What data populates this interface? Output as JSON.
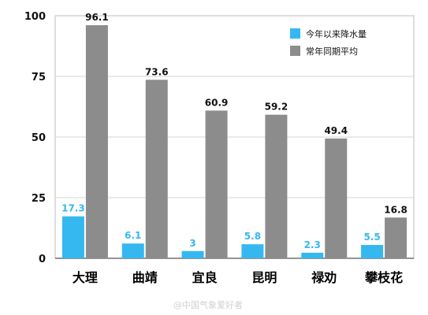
{
  "chart_data": {
    "type": "bar",
    "categories": [
      "大理",
      "曲靖",
      "宜良",
      "昆明",
      "禄劝",
      "攀枝花"
    ],
    "series": [
      {
        "name": "今年以来降水量",
        "values": [
          17.3,
          6.1,
          3,
          5.8,
          2.3,
          5.5
        ],
        "color": "#35b8f0"
      },
      {
        "name": "常年同期平均",
        "values": [
          96.1,
          73.6,
          60.9,
          59.2,
          49.4,
          16.8
        ],
        "color": "#8c8c8c"
      }
    ],
    "value_labels": [
      [
        "17.3",
        "6.1",
        "3",
        "5.8",
        "2.3",
        "5.5"
      ],
      [
        "96.1",
        "73.6",
        "60.9",
        "59.2",
        "49.4",
        "16.8"
      ]
    ],
    "yticks": [
      0,
      25,
      50,
      75,
      100
    ],
    "ylim": [
      0,
      100
    ],
    "grid": true,
    "legend_position": "top-right",
    "label_colors": [
      "#35b8f0",
      "#111111"
    ]
  },
  "watermark": "@中国气象爱好者"
}
